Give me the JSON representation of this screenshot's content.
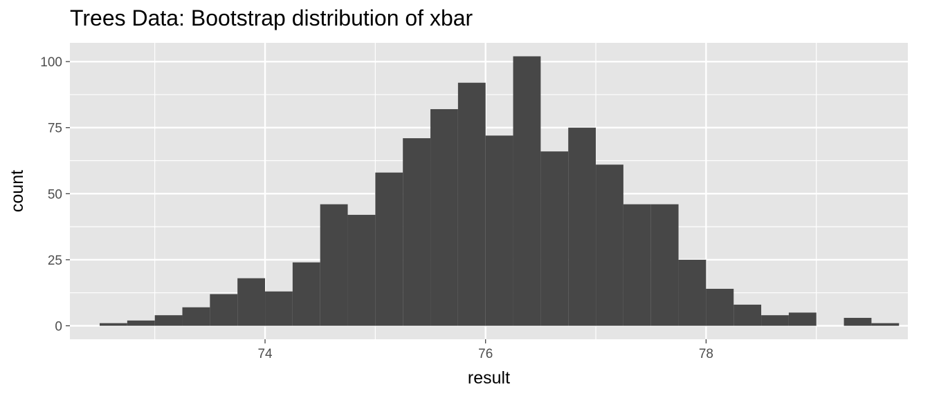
{
  "chart_data": {
    "type": "bar",
    "title": "Trees Data: Bootstrap distribution of xbar",
    "xlabel": "result",
    "ylabel": "count",
    "xlim": [
      72.23,
      79.83
    ],
    "ylim": [
      -5.1,
      107.1
    ],
    "x_ticks": [
      74,
      76,
      78
    ],
    "y_ticks": [
      0,
      25,
      50,
      75,
      100
    ],
    "x_tick_labels": [
      "74",
      "76",
      "78"
    ],
    "y_tick_labels": [
      "0",
      "25",
      "50",
      "75",
      "100"
    ],
    "grid": true,
    "legend": "none",
    "bin_width": 0.25,
    "bins": [
      {
        "start": 72.5,
        "count": 1
      },
      {
        "start": 72.75,
        "count": 2
      },
      {
        "start": 73.0,
        "count": 4
      },
      {
        "start": 73.25,
        "count": 7
      },
      {
        "start": 73.5,
        "count": 12
      },
      {
        "start": 73.75,
        "count": 18
      },
      {
        "start": 74.0,
        "count": 13
      },
      {
        "start": 74.25,
        "count": 24
      },
      {
        "start": 74.5,
        "count": 46
      },
      {
        "start": 74.75,
        "count": 42
      },
      {
        "start": 75.0,
        "count": 58
      },
      {
        "start": 75.25,
        "count": 71
      },
      {
        "start": 75.5,
        "count": 82
      },
      {
        "start": 75.75,
        "count": 92
      },
      {
        "start": 76.0,
        "count": 72
      },
      {
        "start": 76.25,
        "count": 102
      },
      {
        "start": 76.5,
        "count": 66
      },
      {
        "start": 76.75,
        "count": 75
      },
      {
        "start": 77.0,
        "count": 61
      },
      {
        "start": 77.25,
        "count": 46
      },
      {
        "start": 77.5,
        "count": 46
      },
      {
        "start": 77.75,
        "count": 25
      },
      {
        "start": 78.0,
        "count": 14
      },
      {
        "start": 78.25,
        "count": 8
      },
      {
        "start": 78.5,
        "count": 4
      },
      {
        "start": 78.75,
        "count": 5
      },
      {
        "start": 79.0,
        "count": 0
      },
      {
        "start": 79.25,
        "count": 3
      },
      {
        "start": 79.5,
        "count": 1
      }
    ],
    "colors": {
      "panel": "#e5e5e5",
      "grid_major": "#ffffff",
      "bar": "#474747",
      "tick_text": "#4d4d4d",
      "tick_mark": "#333333"
    }
  }
}
